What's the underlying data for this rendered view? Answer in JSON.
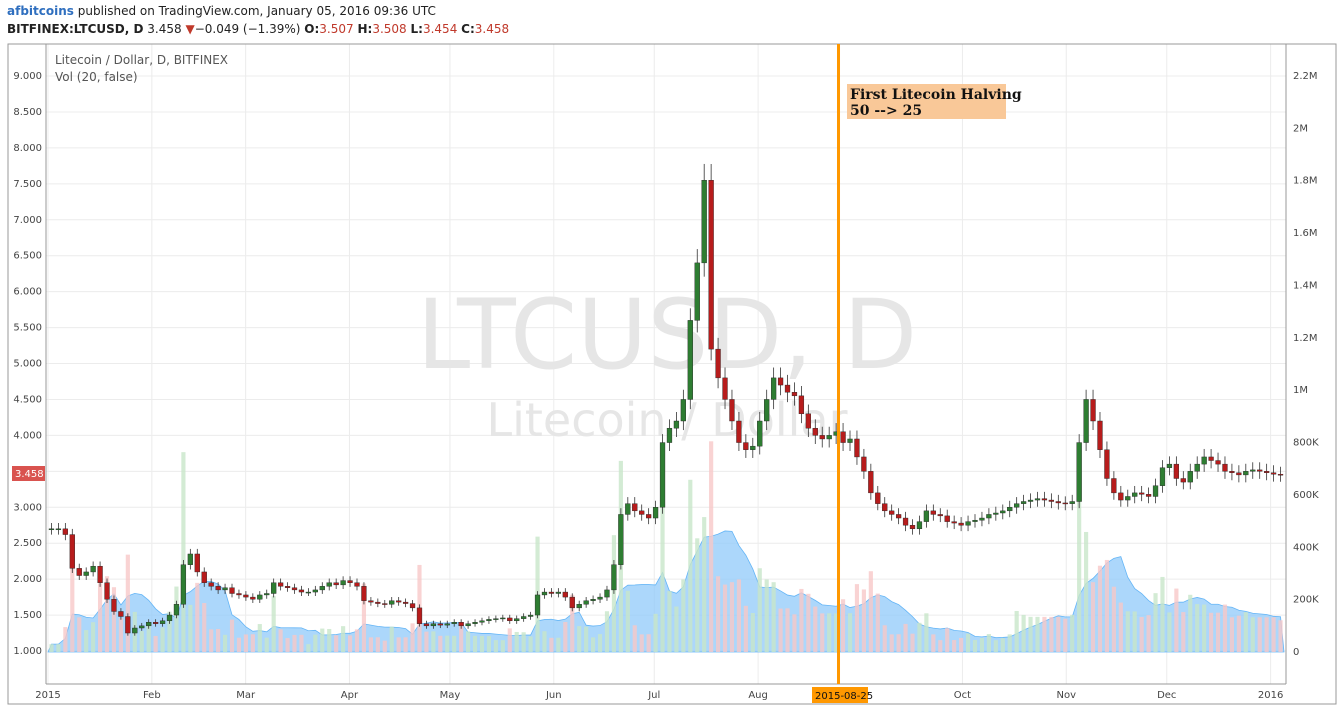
{
  "header": {
    "author": "afbitcoins",
    "published": " published on TradingView.com, January 05, 2016 09:36 UTC",
    "symbol": "BITFINEX:LTCUSD, D",
    "last": "3.458",
    "change": "−0.049 (−1.39%)",
    "o_label": "O:",
    "o_value": "3.507",
    "h_label": "H:",
    "h_value": "3.508",
    "l_label": "L:",
    "l_value": "3.454",
    "c_label": "C:",
    "c_value": "3.458"
  },
  "chart_data": {
    "type": "candlestick",
    "title": "Litecoin / Dollar, D, BITFINEX",
    "indicator": "Vol (20, false)",
    "watermark": "LTCUSD, D",
    "watermark_sub": "Litecoin / Dollar",
    "price_ticks": [
      "9.000",
      "8.500",
      "8.000",
      "7.500",
      "7.000",
      "6.500",
      "6.000",
      "5.500",
      "5.000",
      "4.500",
      "4.000",
      "3.500",
      "3.000",
      "2.500",
      "2.000",
      "1.500",
      "1.000"
    ],
    "price_range": [
      1.0,
      9.0
    ],
    "volume_ticks": [
      "2.2M",
      "2M",
      "1.8M",
      "1.6M",
      "1.4M",
      "1.2M",
      "1M",
      "800K",
      "600K",
      "400K",
      "200K",
      "0"
    ],
    "volume_range": [
      0,
      2200000
    ],
    "time_ticks": [
      "2015",
      "Feb",
      "Mar",
      "Apr",
      "May",
      "Jun",
      "Jul",
      "Aug",
      "Oct",
      "Nov",
      "Dec",
      "2016"
    ],
    "last_price_label": "3.458",
    "marker_date_label": "2015-08-25",
    "annotation": {
      "line1": "First Litecoin Halving",
      "line2": "50 --> 25"
    },
    "colors": {
      "up": "#2e7d32",
      "down": "#b71c1c",
      "volume_area": "#90caf9",
      "marker": "#ff9800",
      "annotation_bg": "#f9c898",
      "last_price": "#d9534f"
    },
    "date_range": [
      "2015-01-01",
      "2016-01-05"
    ],
    "closes": [
      2.7,
      2.7,
      2.62,
      2.15,
      2.05,
      2.1,
      2.18,
      1.95,
      1.72,
      1.55,
      1.48,
      1.25,
      1.32,
      1.35,
      1.4,
      1.38,
      1.42,
      1.5,
      1.65,
      2.2,
      2.35,
      2.1,
      1.95,
      1.9,
      1.85,
      1.88,
      1.8,
      1.78,
      1.75,
      1.72,
      1.78,
      1.8,
      1.95,
      1.9,
      1.88,
      1.85,
      1.82,
      1.82,
      1.85,
      1.9,
      1.95,
      1.92,
      1.98,
      1.95,
      1.9,
      1.7,
      1.68,
      1.66,
      1.65,
      1.7,
      1.68,
      1.66,
      1.6,
      1.38,
      1.35,
      1.38,
      1.36,
      1.38,
      1.4,
      1.35,
      1.38,
      1.4,
      1.42,
      1.44,
      1.45,
      1.46,
      1.42,
      1.45,
      1.48,
      1.5,
      1.78,
      1.82,
      1.8,
      1.82,
      1.75,
      1.6,
      1.65,
      1.7,
      1.72,
      1.75,
      1.85,
      2.2,
      2.9,
      3.05,
      2.95,
      2.9,
      2.85,
      3.0,
      3.9,
      4.1,
      4.2,
      4.5,
      5.6,
      6.4,
      7.55,
      5.2,
      4.8,
      4.5,
      4.2,
      3.9,
      3.8,
      3.85,
      4.2,
      4.5,
      4.8,
      4.7,
      4.6,
      4.55,
      4.3,
      4.1,
      4.0,
      3.95,
      4.0,
      4.05,
      3.9,
      3.95,
      3.7,
      3.5,
      3.2,
      3.05,
      2.95,
      2.9,
      2.85,
      2.75,
      2.7,
      2.8,
      2.95,
      2.9,
      2.88,
      2.8,
      2.78,
      2.75,
      2.8,
      2.82,
      2.85,
      2.9,
      2.92,
      2.95,
      3.0,
      3.05,
      3.08,
      3.1,
      3.12,
      3.1,
      3.08,
      3.06,
      3.05,
      3.08,
      3.9,
      4.5,
      4.2,
      3.8,
      3.4,
      3.2,
      3.1,
      3.15,
      3.2,
      3.18,
      3.15,
      3.3,
      3.55,
      3.6,
      3.4,
      3.35,
      3.5,
      3.6,
      3.7,
      3.65,
      3.6,
      3.5,
      3.48,
      3.45,
      3.5,
      3.52,
      3.5,
      3.48,
      3.46,
      3.458
    ]
  }
}
